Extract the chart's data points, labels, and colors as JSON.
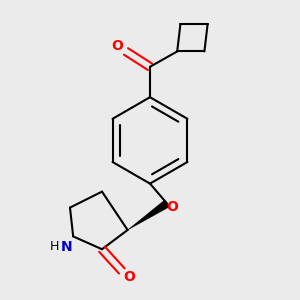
{
  "bg_color": "#ebebeb",
  "bond_color": "#000000",
  "oxygen_color": "#ff0000",
  "nitrogen_color": "#0000cc",
  "lw": 1.5,
  "dbo": 0.012,
  "figsize": [
    3.0,
    3.0
  ],
  "dpi": 100,
  "xlim": [
    0.1,
    0.9
  ],
  "ylim": [
    0.05,
    0.97
  ]
}
